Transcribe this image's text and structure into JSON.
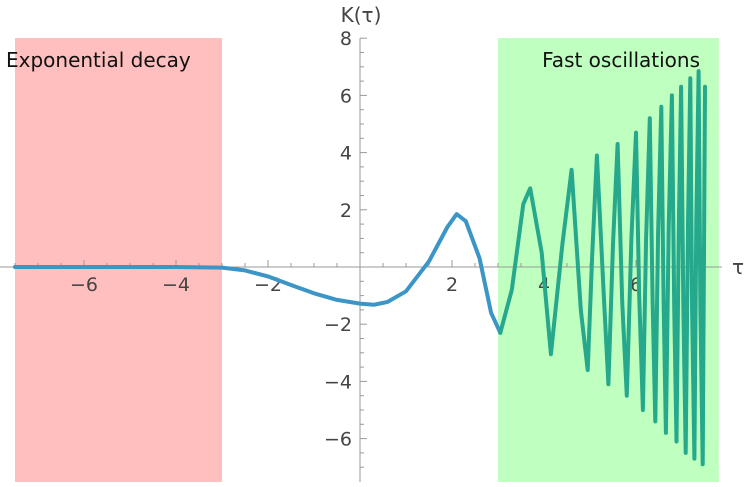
{
  "chart_data": {
    "type": "line",
    "title": "",
    "xlabel": "τ",
    "ylabel": "K(τ)",
    "xlim": [
      -7.5,
      7.5
    ],
    "ylim": [
      -7.2,
      8
    ],
    "xticks": [
      -6,
      -4,
      -2,
      2,
      4,
      6
    ],
    "xtick_labels": [
      "−6",
      "−4",
      "−2",
      "2",
      "4",
      "6"
    ],
    "yticks": [
      -6,
      -4,
      -2,
      2,
      4,
      6,
      8
    ],
    "ytick_labels": [
      "−6",
      "−4",
      "−2",
      "2",
      "4",
      "6",
      "8"
    ],
    "regions": [
      {
        "name": "Exponential decay",
        "x": [
          -7.5,
          -3
        ],
        "color": "#ffbfbf"
      },
      {
        "name": "Fast oscillations",
        "x": [
          3,
          7.8
        ],
        "color": "#bfffbf"
      }
    ],
    "series": [
      {
        "color_blue": "#3b95c6",
        "color_green": "#25a88c",
        "points": [
          [
            -7.5,
            0
          ],
          [
            -6,
            0
          ],
          [
            -5,
            0
          ],
          [
            -4,
            0
          ],
          [
            -3,
            -0.02
          ],
          [
            -2.5,
            -0.12
          ],
          [
            -2,
            -0.33
          ],
          [
            -1.5,
            -0.63
          ],
          [
            -1,
            -0.92
          ],
          [
            -0.5,
            -1.15
          ],
          [
            0,
            -1.28
          ],
          [
            0.3,
            -1.32
          ],
          [
            0.6,
            -1.22
          ],
          [
            1,
            -0.85
          ],
          [
            1.5,
            0.2
          ],
          [
            1.9,
            1.4
          ],
          [
            2.1,
            1.85
          ],
          [
            2.3,
            1.6
          ],
          [
            2.6,
            0.3
          ],
          [
            2.85,
            -1.6
          ],
          [
            3.05,
            -2.3
          ],
          [
            3.3,
            -0.8
          ],
          [
            3.55,
            2.2
          ],
          [
            3.7,
            2.75
          ],
          [
            3.95,
            0.5
          ],
          [
            4.15,
            -3.05
          ],
          [
            4.4,
            0.8
          ],
          [
            4.6,
            3.4
          ],
          [
            4.8,
            -1.5
          ],
          [
            4.95,
            -3.6
          ],
          [
            5.05,
            0.5
          ],
          [
            5.15,
            3.9
          ],
          [
            5.3,
            -1.0
          ],
          [
            5.4,
            -4.1
          ],
          [
            5.5,
            0.8
          ],
          [
            5.6,
            4.3
          ],
          [
            5.7,
            -1.2
          ],
          [
            5.8,
            -4.5
          ],
          [
            5.9,
            1.0
          ],
          [
            6.0,
            4.7
          ],
          [
            6.07,
            -1.0
          ],
          [
            6.15,
            -5.0
          ],
          [
            6.22,
            1.0
          ],
          [
            6.3,
            5.2
          ],
          [
            6.36,
            -1.2
          ],
          [
            6.42,
            -5.4
          ],
          [
            6.48,
            1.2
          ],
          [
            6.55,
            5.6
          ],
          [
            6.6,
            -1.2
          ],
          [
            6.65,
            -5.8
          ],
          [
            6.71,
            1.4
          ],
          [
            6.78,
            6.0
          ],
          [
            6.83,
            -1.4
          ],
          [
            6.88,
            -6.1
          ],
          [
            6.93,
            1.4
          ],
          [
            6.98,
            6.3
          ],
          [
            7.03,
            -1.5
          ],
          [
            7.08,
            -6.5
          ],
          [
            7.13,
            1.5
          ],
          [
            7.18,
            6.6
          ],
          [
            7.22,
            -1.5
          ],
          [
            7.27,
            -6.7
          ],
          [
            7.31,
            1.6
          ],
          [
            7.36,
            6.85
          ],
          [
            7.4,
            -1.5
          ],
          [
            7.45,
            -6.9
          ],
          [
            7.5,
            6.3
          ]
        ]
      }
    ]
  }
}
